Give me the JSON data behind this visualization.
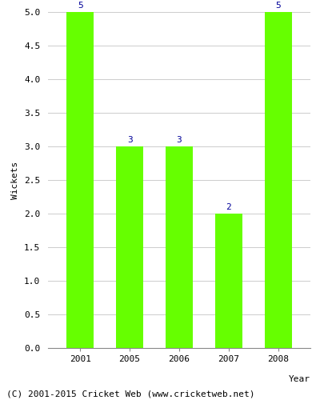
{
  "years": [
    "2001",
    "2005",
    "2006",
    "2007",
    "2008"
  ],
  "wickets": [
    5,
    3,
    3,
    2,
    5
  ],
  "bar_color": "#66ff00",
  "bar_edgecolor": "#66ff00",
  "label_color": "#000099",
  "ylabel": "Wickets",
  "xlabel": "Year",
  "ylim": [
    0,
    5.0
  ],
  "yticks": [
    0.0,
    0.5,
    1.0,
    1.5,
    2.0,
    2.5,
    3.0,
    3.5,
    4.0,
    4.5,
    5.0
  ],
  "footnote": "(C) 2001-2015 Cricket Web (www.cricketweb.net)",
  "label_fontsize": 8,
  "axis_fontsize": 8,
  "tick_fontsize": 8,
  "footnote_fontsize": 8,
  "background_color": "#ffffff",
  "grid_color": "#cccccc",
  "bar_width": 0.55
}
